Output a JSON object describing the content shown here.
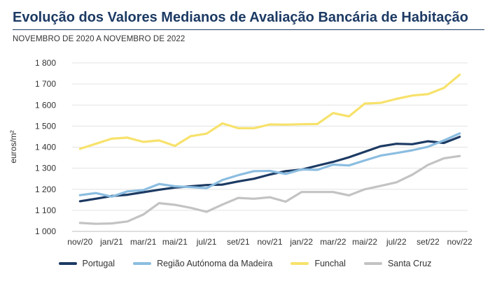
{
  "chart_data": {
    "type": "line",
    "title": "Evolução dos Valores Medianos de Avaliação Bancária de Habitação",
    "subtitle": "NOVEMBRO DE 2020 A NOVEMBRO DE 2022",
    "xlabel": "",
    "ylabel": "euros/m²",
    "ylim": [
      1000,
      1800
    ],
    "yticks": [
      1000,
      1100,
      1200,
      1300,
      1400,
      1500,
      1600,
      1700,
      1800
    ],
    "ytick_labels": [
      "1 000",
      "1 100",
      "1 200",
      "1 300",
      "1 400",
      "1 500",
      "1 600",
      "1 700",
      "1 800"
    ],
    "x": [
      "nov/20",
      "dez/20",
      "jan/21",
      "fev/21",
      "mar/21",
      "abr/21",
      "mai/21",
      "jun/21",
      "jul/21",
      "ago/21",
      "set/21",
      "out/21",
      "nov/21",
      "dez/21",
      "jan/22",
      "fev/22",
      "mar/22",
      "abr/22",
      "mai/22",
      "jun/22",
      "jul/22",
      "ago/22",
      "set/22",
      "out/22",
      "nov/22"
    ],
    "xtick_labels": [
      "nov/20",
      "jan/21",
      "mar/21",
      "mai/21",
      "jul/21",
      "set/21",
      "nov/21",
      "jan/22",
      "mar/22",
      "mai/22",
      "jul/22",
      "set/22",
      "nov/22"
    ],
    "grid": "horizontal",
    "legend_position": "bottom",
    "series": [
      {
        "name": "Portugal",
        "color": "#1c3a63",
        "values": [
          1143,
          1155,
          1168,
          1174,
          1186,
          1198,
          1208,
          1214,
          1220,
          1222,
          1237,
          1250,
          1270,
          1286,
          1293,
          1312,
          1330,
          1352,
          1378,
          1404,
          1416,
          1414,
          1428,
          1420,
          1449
        ]
      },
      {
        "name": "Região Autónoma da Madeira",
        "color": "#8bbde0",
        "values": [
          1172,
          1182,
          1165,
          1190,
          1196,
          1225,
          1214,
          1210,
          1205,
          1244,
          1267,
          1286,
          1287,
          1273,
          1294,
          1292,
          1317,
          1313,
          1337,
          1360,
          1372,
          1385,
          1402,
          1432,
          1465
        ]
      },
      {
        "name": "Funchal",
        "color": "#f7e26b",
        "values": [
          1392,
          1416,
          1440,
          1445,
          1425,
          1432,
          1406,
          1452,
          1464,
          1513,
          1490,
          1490,
          1508,
          1507,
          1509,
          1510,
          1562,
          1546,
          1607,
          1610,
          1629,
          1645,
          1652,
          1681,
          1744
        ]
      },
      {
        "name": "Santa Cruz",
        "color": "#c3c3c3",
        "values": [
          1040,
          1036,
          1038,
          1047,
          1080,
          1134,
          1126,
          1112,
          1093,
          1127,
          1159,
          1155,
          1162,
          1141,
          1187,
          1187,
          1187,
          1171,
          1200,
          1216,
          1233,
          1269,
          1316,
          1347,
          1358
        ]
      }
    ]
  }
}
